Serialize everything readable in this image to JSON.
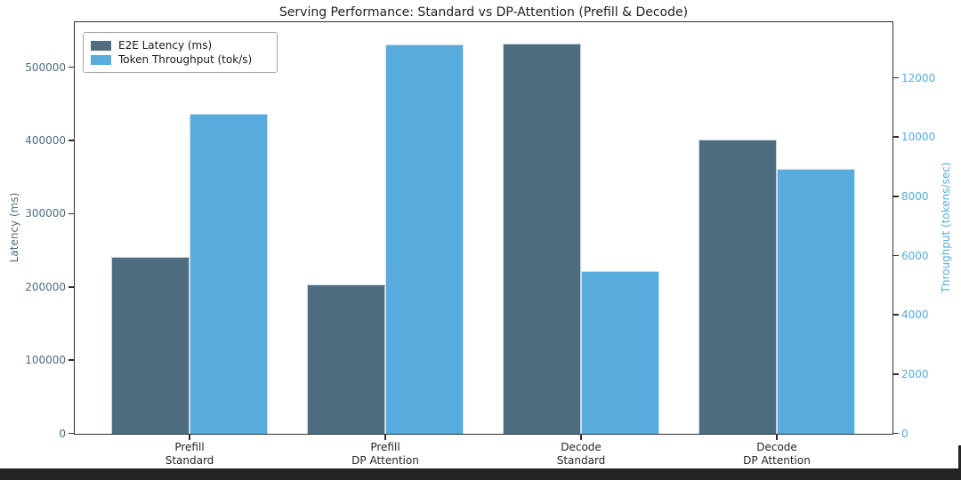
{
  "title": "Serving Performance: Standard vs DP-Attention (Prefill & Decode)",
  "legend": {
    "items": [
      {
        "label": "E2E Latency (ms)",
        "color": "#4e6d80"
      },
      {
        "label": "Token Throughput (tok/s)",
        "color": "#57abdd"
      }
    ]
  },
  "left_axis": {
    "label": "Latency (ms)",
    "color": "#4e6d80",
    "ticks": [
      0,
      100000,
      200000,
      300000,
      400000,
      500000
    ]
  },
  "right_axis": {
    "label": "Throughput (tokens/sec)",
    "color": "#57abdd",
    "ticks": [
      0,
      2000,
      4000,
      6000,
      8000,
      10000,
      12000
    ]
  },
  "chart_data": {
    "type": "bar",
    "title": "Serving Performance: Standard vs DP-Attention (Prefill & Decode)",
    "categories": [
      {
        "line1": "Prefill",
        "line2": "Standard"
      },
      {
        "line1": "Prefill",
        "line2": "DP Attention"
      },
      {
        "line1": "Decode",
        "line2": "Standard"
      },
      {
        "line1": "Decode",
        "line2": "DP Attention"
      }
    ],
    "series": [
      {
        "name": "E2E Latency (ms)",
        "axis": "left",
        "color": "#4e6d80",
        "values": [
          242000,
          204000,
          533000,
          402000
        ]
      },
      {
        "name": "Token Throughput (tok/s)",
        "axis": "right",
        "color": "#57abdd",
        "values": [
          10800,
          13150,
          5500,
          8950
        ]
      }
    ],
    "ylabel_left": "Latency (ms)",
    "ylabel_right": "Throughput (tokens/sec)",
    "ylim_left": [
      0,
      561000
    ],
    "ylim_right": [
      0,
      13860
    ],
    "grid": false,
    "legend_position": "upper left"
  }
}
